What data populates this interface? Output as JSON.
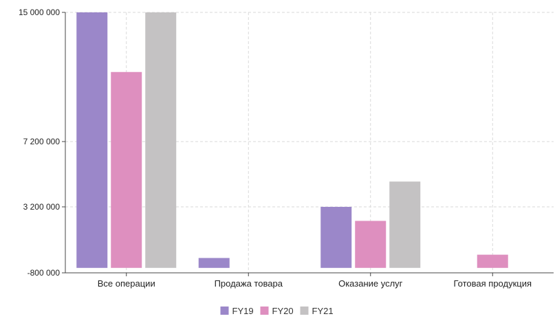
{
  "chart_data": {
    "type": "bar",
    "categories": [
      "Все операции",
      "Продажа товара",
      "Оказание услуг",
      "Готовая продукция"
    ],
    "series": [
      {
        "name": "FY19",
        "color": "#9b87c9",
        "values": [
          15000000,
          100000,
          3200000,
          -500000
        ]
      },
      {
        "name": "FY20",
        "color": "#de8fbf",
        "values": [
          11400000,
          0,
          2350000,
          300000
        ]
      },
      {
        "name": "FY21",
        "color": "#c4c2c3",
        "values": [
          15000000,
          0,
          4750000,
          0
        ]
      }
    ],
    "yticks": [
      {
        "value": 15000000,
        "label": "15 000 000"
      },
      {
        "value": 7200000,
        "label": "7 200 000"
      },
      {
        "value": 3200000,
        "label": "3 200 000"
      },
      {
        "value": -800000,
        "label": "-800 000"
      }
    ],
    "ylim": [
      -800000,
      15000000
    ],
    "baseline": -500000,
    "grid": true,
    "legend_position": "bottom",
    "title": "",
    "xlabel": "",
    "ylabel": ""
  }
}
